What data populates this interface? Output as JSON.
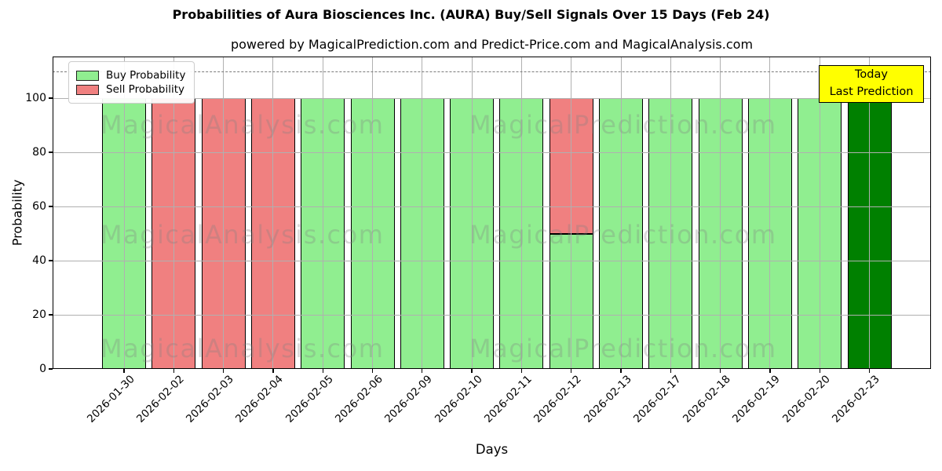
{
  "chart_data": {
    "type": "bar",
    "stacked": true,
    "title": "Probabilities of Aura Biosciences Inc. (AURA) Buy/Sell Signals Over 15 Days (Feb 24)",
    "subtitle": "powered by MagicalPrediction.com and Predict-Price.com and MagicalAnalysis.com",
    "xlabel": "Days",
    "ylabel": "Probability",
    "categories": [
      "2026-01-30",
      "2026-02-02",
      "2026-02-03",
      "2026-02-04",
      "2026-02-05",
      "2026-02-06",
      "2026-02-09",
      "2026-02-10",
      "2026-02-11",
      "2026-02-12",
      "2026-02-13",
      "2026-02-17",
      "2026-02-18",
      "2026-02-19",
      "2026-02-20",
      "2026-02-23"
    ],
    "series": [
      {
        "name": "Buy Probability",
        "color": "#90EE90",
        "values": [
          100,
          0,
          0,
          0,
          100,
          100,
          100,
          100,
          100,
          50,
          100,
          100,
          100,
          100,
          100,
          100
        ]
      },
      {
        "name": "Sell Probability",
        "color": "#F08080",
        "values": [
          0,
          100,
          100,
          100,
          0,
          0,
          0,
          0,
          0,
          50,
          0,
          0,
          0,
          0,
          0,
          0
        ]
      }
    ],
    "today": {
      "index": 15,
      "bar_color": "#008000",
      "box_color": "#FFFF00",
      "label_lines": [
        "Today",
        "Last Prediction"
      ]
    },
    "yticks": [
      0,
      20,
      40,
      60,
      80,
      100
    ],
    "ylim": [
      0,
      115.4
    ],
    "dashed_line_y": 110,
    "grid": true,
    "bar_edge_color": "#000000",
    "legend_position": "upper-left",
    "watermarks": {
      "left": "MagicalAnalysis.com",
      "right": "MagicalPrediction.com"
    }
  }
}
